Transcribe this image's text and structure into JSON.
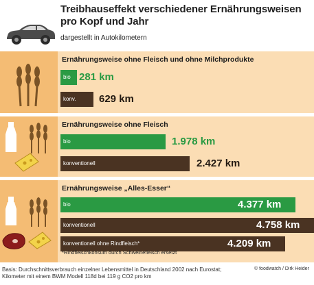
{
  "title_line1": "Treibhauseffekt verschiedener Ernährungsweisen",
  "title_line2": "pro Kopf und Jahr",
  "subtitle": "dargestellt in Autokilometern",
  "colors": {
    "bio": "#2a9a43",
    "konventionell": "#4a3322",
    "panel": "#fbddb4",
    "band": "#f4bc74"
  },
  "icons": [
    "car-icon",
    "wheat-icon",
    "milk-bottle-icon",
    "cheese-icon",
    "steak-icon"
  ],
  "chart_data": {
    "type": "bar",
    "orientation": "horizontal",
    "unit": "km",
    "groups": [
      {
        "title": "Ernährungsweise ohne Fleisch und ohne Milchprodukte",
        "bars": [
          {
            "label": "bio",
            "value": 281,
            "value_label": "281 km"
          },
          {
            "label": "konv.",
            "value": 629,
            "value_label": "629 km"
          }
        ]
      },
      {
        "title": "Ernährungsweise ohne Fleisch",
        "bars": [
          {
            "label": "bio",
            "value": 1978,
            "value_label": "1.978 km"
          },
          {
            "label": "konventionell",
            "value": 2427,
            "value_label": "2.427 km"
          }
        ]
      },
      {
        "title": "Ernährungsweise „Alles-Esser“",
        "bars": [
          {
            "label": "bio",
            "value": 4377,
            "value_label": "4.377 km"
          },
          {
            "label": "konventionell",
            "value": 4758,
            "value_label": "4.758 km"
          },
          {
            "label": "konventionell ohne Rindfleisch*",
            "value": 4209,
            "value_label": "4.209 km"
          }
        ],
        "footnote": "*Rindfleischkonsum durch Schweinefleisch ersetzt"
      }
    ]
  },
  "basis_line1": "Basis: Durchschnittsverbrauch einzelner Lebensmittel in Deutschland 2002 nach Eurostat;",
  "basis_line2": "Kilometer mit einem BWM Modell 118d bei 119 g CO2 pro km",
  "credit": "© foodwatch / Dirk Heider"
}
